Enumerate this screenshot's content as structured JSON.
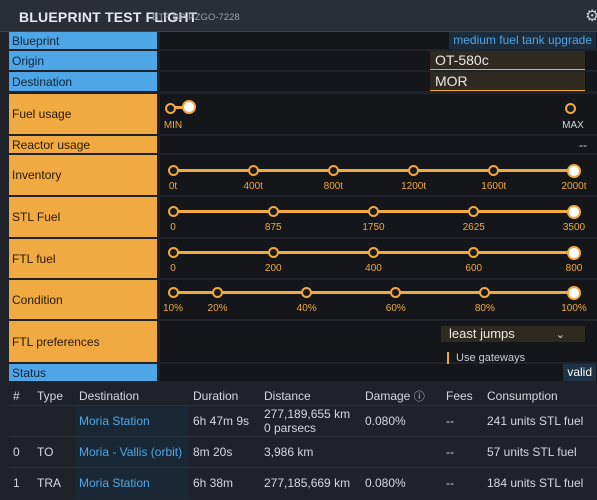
{
  "header": {
    "title": "BLUEPRINT TEST FLIGHT",
    "subtitle": "BTF BP-PZGO-7228",
    "settings_icon": "gear-icon"
  },
  "form": {
    "blueprint": {
      "label": "Blueprint",
      "value": "medium fuel tank upgrade"
    },
    "origin": {
      "label": "Origin",
      "value": "OT-580c"
    },
    "destination": {
      "label": "Destination",
      "value": "MOR"
    },
    "fuel_usage": {
      "label": "Fuel usage",
      "min_label": "MIN",
      "max_label": "MAX",
      "value": 0
    },
    "reactor_usage": {
      "label": "Reactor usage",
      "value": "--"
    },
    "inventory": {
      "label": "Inventory",
      "ticks": [
        "0t",
        "400t",
        "800t",
        "1200t",
        "1600t",
        "2000t"
      ],
      "value": "2000t"
    },
    "stl_fuel": {
      "label": "STL Fuel",
      "ticks": [
        "0",
        "875",
        "1750",
        "2625",
        "3500"
      ],
      "value": "3500"
    },
    "ftl_fuel": {
      "label": "FTL fuel",
      "ticks": [
        "0",
        "200",
        "400",
        "600",
        "800"
      ],
      "value": "800"
    },
    "condition": {
      "label": "Condition",
      "ticks": [
        "10%",
        "20%",
        "40%",
        "60%",
        "80%",
        "100%"
      ],
      "value": "100%"
    },
    "ftl_preferences": {
      "label": "FTL preferences",
      "selected": "least jumps",
      "gateways_label": "Use gateways"
    },
    "status": {
      "label": "Status",
      "value": "valid"
    }
  },
  "route": {
    "columns": [
      "#",
      "Type",
      "Destination",
      "Duration",
      "Distance",
      "Damage",
      "Fees",
      "Consumption"
    ],
    "damage_info_icon": "info-icon",
    "rows": [
      {
        "num": "",
        "type": "",
        "destination": "Moria Station",
        "duration": "6h 47m 9s",
        "distance": "277,189,655 km",
        "distance_extra": "0 parsecs",
        "damage": "0.080%",
        "fees": "--",
        "consumption": "241 units STL fuel"
      },
      {
        "num": "0",
        "type": "TO",
        "destination": "Moria - Vallis (orbit)",
        "duration": "8m 20s",
        "distance": "3,986 km",
        "distance_extra": "",
        "damage": "",
        "fees": "--",
        "consumption": "57 units STL fuel"
      },
      {
        "num": "1",
        "type": "TRA",
        "destination": "Moria Station",
        "duration": "6h 38m",
        "distance": "277,185,669 km",
        "distance_extra": "",
        "damage": "0.080%",
        "fees": "--",
        "consumption": "184 units STL fuel"
      }
    ]
  }
}
